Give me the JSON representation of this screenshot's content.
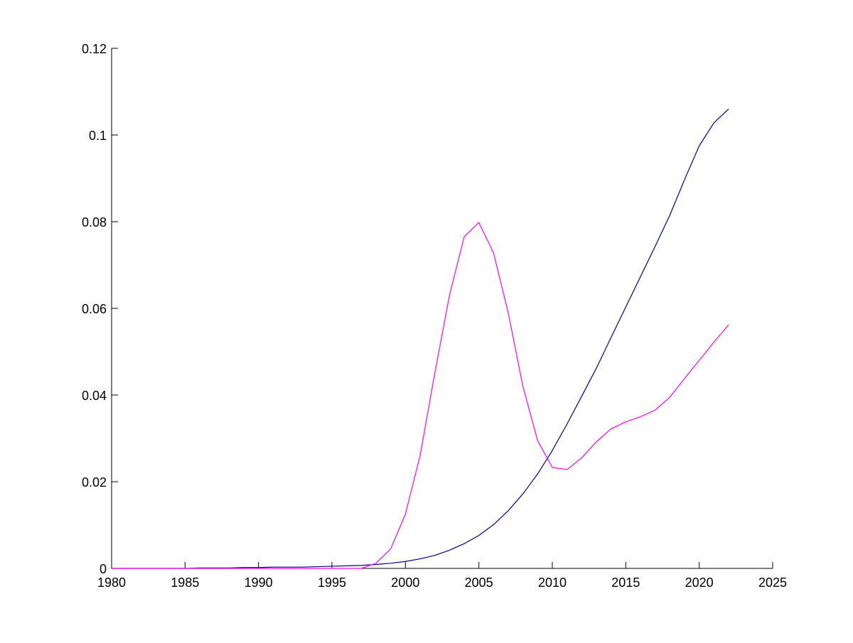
{
  "chart_data": {
    "type": "line",
    "title": "",
    "xlabel": "",
    "ylabel": "",
    "xlim": [
      1980,
      2025
    ],
    "ylim": [
      0,
      0.12
    ],
    "xticks": [
      1980,
      1985,
      1990,
      1995,
      2000,
      2005,
      2010,
      2015,
      2020,
      2025
    ],
    "xtick_labels": [
      "1980",
      "1985",
      "1990",
      "1995",
      "2000",
      "2005",
      "2010",
      "2015",
      "2020",
      "2025"
    ],
    "yticks": [
      0,
      0.02,
      0.04,
      0.06,
      0.08,
      0.1,
      0.12
    ],
    "ytick_labels": [
      "0",
      "0.02",
      "0.04",
      "0.06",
      "0.08",
      "0.1",
      "0.12"
    ],
    "grid": false,
    "legend": "none",
    "x": [
      1980,
      1981,
      1982,
      1983,
      1984,
      1985,
      1986,
      1987,
      1988,
      1989,
      1990,
      1991,
      1992,
      1993,
      1994,
      1995,
      1996,
      1997,
      1998,
      1999,
      2000,
      2001,
      2002,
      2003,
      2004,
      2005,
      2006,
      2007,
      2008,
      2009,
      2010,
      2011,
      2012,
      2013,
      2014,
      2015,
      2016,
      2017,
      2018,
      2019,
      2020,
      2021,
      2022
    ],
    "series": [
      {
        "color": "#00008b",
        "values": [
          0,
          0,
          0,
          0,
          0,
          0,
          0.0001,
          0.0001,
          0.0001,
          0.0002,
          0.0002,
          0.0003,
          0.0003,
          0.0003,
          0.0004,
          0.0005,
          0.0006,
          0.0007,
          0.0009,
          0.0012,
          0.0016,
          0.0022,
          0.003,
          0.0042,
          0.0057,
          0.0076,
          0.0101,
          0.0133,
          0.0172,
          0.0218,
          0.0272,
          0.0333,
          0.0397,
          0.0462,
          0.0533,
          0.0603,
          0.0673,
          0.0743,
          0.0815,
          0.0897,
          0.0975,
          0.1028,
          0.106
        ]
      },
      {
        "color": "#ff00ff",
        "values": [
          0,
          0,
          0,
          0,
          0,
          0,
          0,
          0,
          0,
          0,
          0,
          0,
          0,
          0,
          0,
          0,
          0,
          0,
          0.0012,
          0.0045,
          0.0125,
          0.026,
          0.045,
          0.063,
          0.0765,
          0.0798,
          0.0728,
          0.059,
          0.042,
          0.0295,
          0.0233,
          0.0228,
          0.0255,
          0.0292,
          0.0322,
          0.0338,
          0.035,
          0.0365,
          0.0395,
          0.0438,
          0.048,
          0.0522,
          0.0562
        ]
      }
    ]
  }
}
